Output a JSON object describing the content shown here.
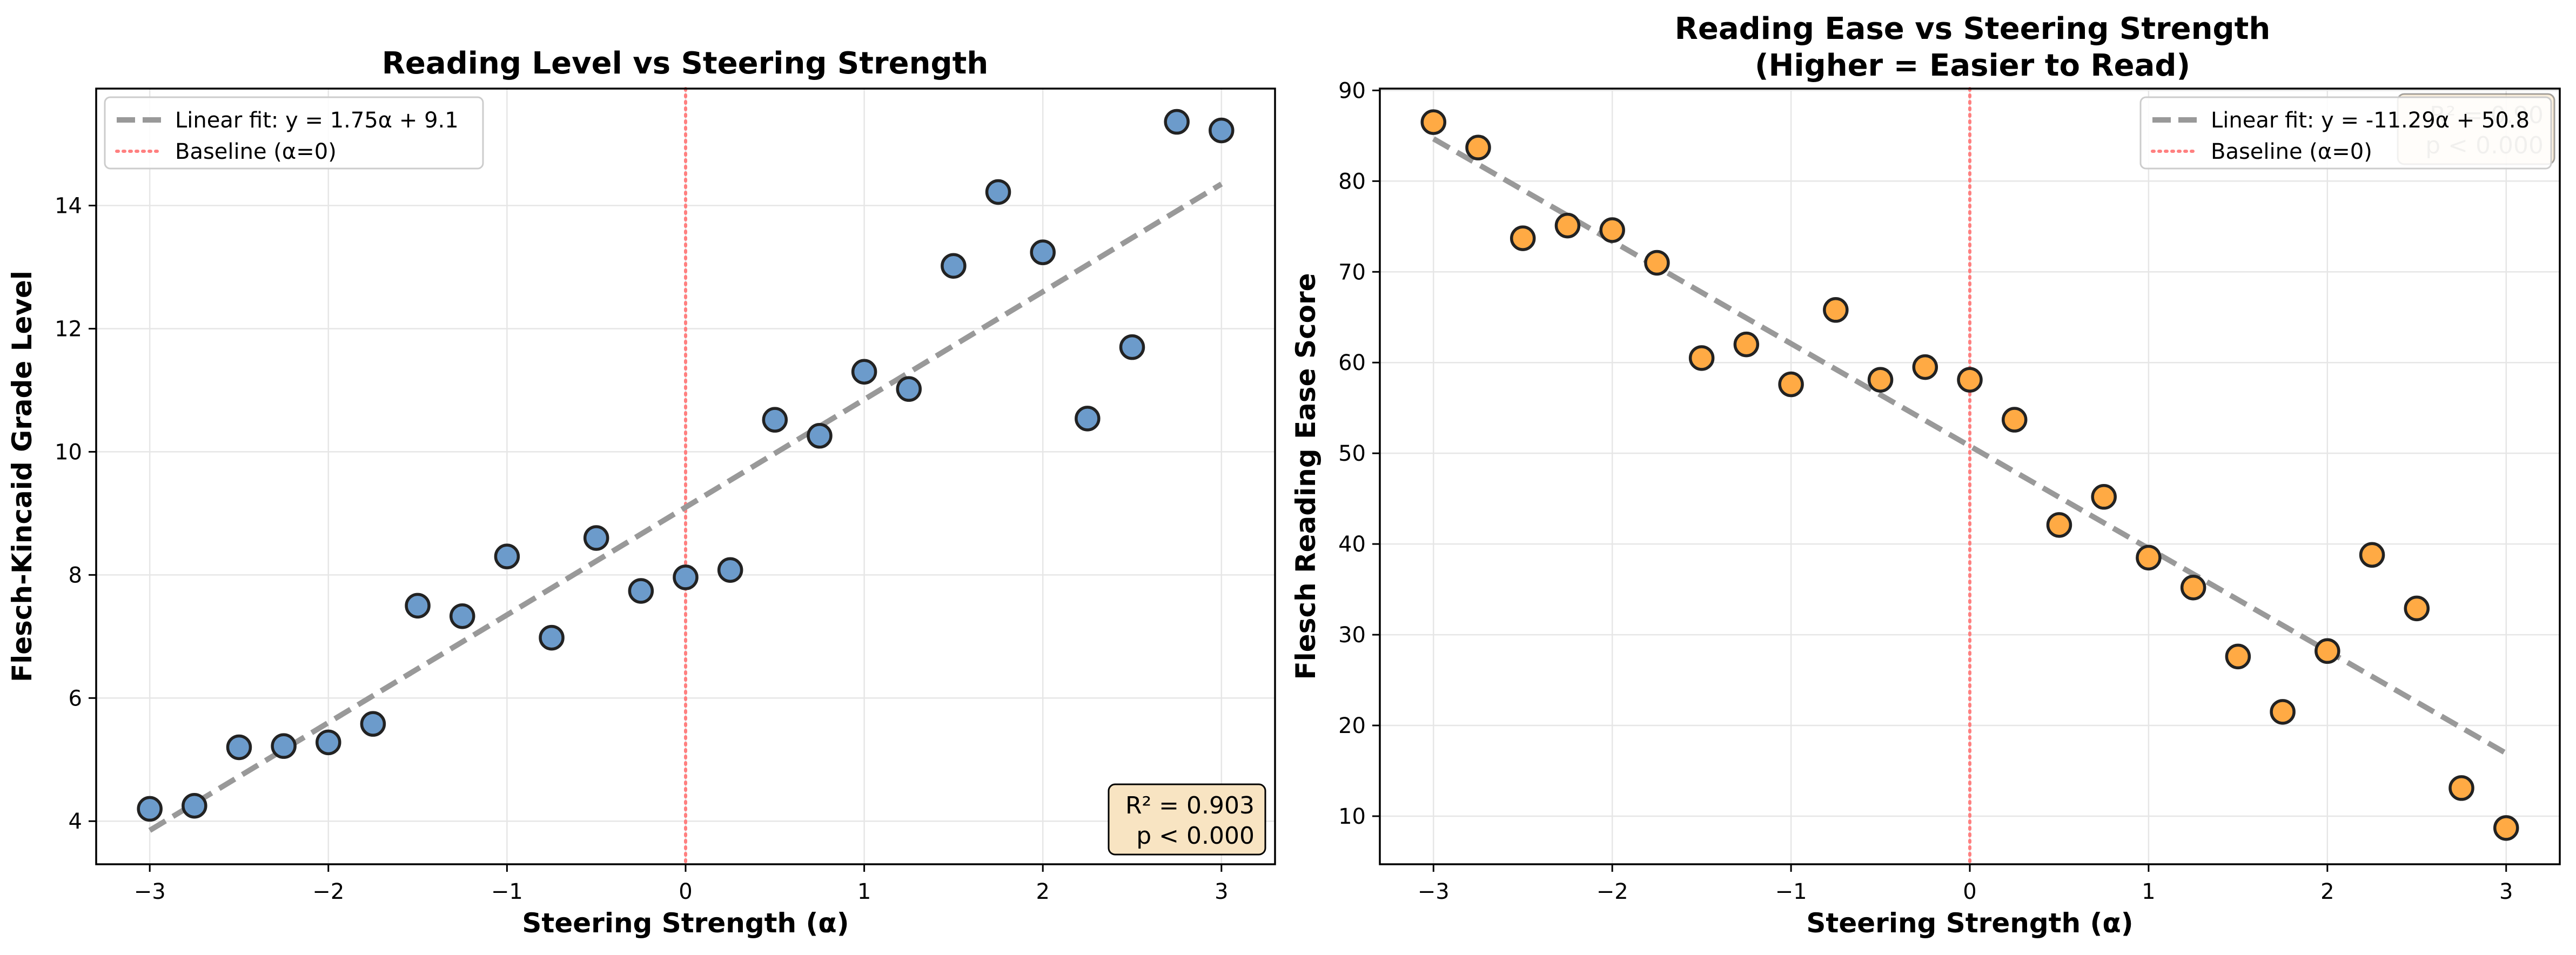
{
  "chart_data": [
    {
      "type": "scatter",
      "title": "Reading Level vs Steering Strength",
      "xlabel": "Steering Strength (α)",
      "ylabel": "Flesch-Kincaid Grade Level",
      "xlim": [
        -3.3,
        3.3
      ],
      "ylim": [
        3.3,
        15.9
      ],
      "xticks": [
        -3,
        -2,
        -1,
        0,
        1,
        2,
        3
      ],
      "xtick_labels": [
        "−3",
        "−2",
        "−1",
        "0",
        "1",
        "2",
        "3"
      ],
      "yticks": [
        4,
        6,
        8,
        10,
        12,
        14
      ],
      "ytick_labels": [
        "4",
        "6",
        "8",
        "10",
        "12",
        "14"
      ],
      "grid": true,
      "legend_position": "upper-left",
      "marker_color": "#6c9bcb",
      "series": [
        {
          "x": [
            -3,
            -2.75,
            -2.5,
            -2.25,
            -2,
            -1.75,
            -1.5,
            -1.25,
            -1,
            -0.75,
            -0.5,
            -0.25,
            0,
            0.25,
            0.5,
            0.75,
            1,
            1.25,
            1.5,
            1.75,
            2,
            2.25,
            2.5,
            2.75,
            3
          ],
          "y": [
            4.2,
            4.25,
            5.2,
            5.22,
            5.28,
            5.58,
            7.5,
            7.33,
            8.3,
            6.98,
            8.6,
            7.74,
            7.96,
            8.08,
            10.52,
            10.26,
            11.3,
            11.02,
            13.02,
            14.22,
            13.24,
            10.54,
            11.7,
            15.36,
            15.22
          ]
        }
      ],
      "fit": {
        "slope": 1.75,
        "intercept": 9.1,
        "label": "Linear fit: y = 1.75α + 9.1",
        "color": "#999999"
      },
      "baseline": {
        "x": 0,
        "label": "Baseline (α=0)",
        "color": "#ff8080"
      },
      "stats": {
        "line1": "R² = 0.903",
        "line2": "p < 0.000",
        "position": "lower-right"
      }
    },
    {
      "type": "scatter",
      "title": "Reading Ease vs Steering Strength",
      "subtitle": "(Higher = Easier to Read)",
      "xlabel": "Steering Strength (α)",
      "ylabel": "Flesch Reading Ease Score",
      "xlim": [
        -3.3,
        3.3
      ],
      "ylim": [
        4.7,
        90.2
      ],
      "xticks": [
        -3,
        -2,
        -1,
        0,
        1,
        2,
        3
      ],
      "xtick_labels": [
        "−3",
        "−2",
        "−1",
        "0",
        "1",
        "2",
        "3"
      ],
      "yticks": [
        10,
        20,
        30,
        40,
        50,
        60,
        70,
        80,
        90
      ],
      "ytick_labels": [
        "10",
        "20",
        "30",
        "40",
        "50",
        "60",
        "70",
        "80",
        "90"
      ],
      "grid": true,
      "legend_position": "upper-right",
      "marker_color": "#ffaa44",
      "series": [
        {
          "x": [
            -3,
            -2.75,
            -2.5,
            -2.25,
            -2,
            -1.75,
            -1.5,
            -1.25,
            -1,
            -0.75,
            -0.5,
            -0.25,
            0,
            0.25,
            0.5,
            0.75,
            1,
            1.25,
            1.5,
            1.75,
            2,
            2.25,
            2.5,
            2.75,
            3
          ],
          "y": [
            86.5,
            83.7,
            73.7,
            75.1,
            74.6,
            71.0,
            60.5,
            62.0,
            57.6,
            65.8,
            58.1,
            59.5,
            58.1,
            53.7,
            42.1,
            45.2,
            38.5,
            35.2,
            27.6,
            21.5,
            28.2,
            38.8,
            32.9,
            13.1,
            8.7
          ]
        }
      ],
      "fit": {
        "slope": -11.29,
        "intercept": 50.8,
        "label": "Linear fit: y = -11.29α + 50.8",
        "color": "#999999"
      },
      "baseline": {
        "x": 0,
        "label": "Baseline (α=0)",
        "color": "#ff8080"
      },
      "stats": {
        "line1": "R² = 0.90",
        "line2": "p < 0.000",
        "position": "upper-right"
      }
    }
  ]
}
